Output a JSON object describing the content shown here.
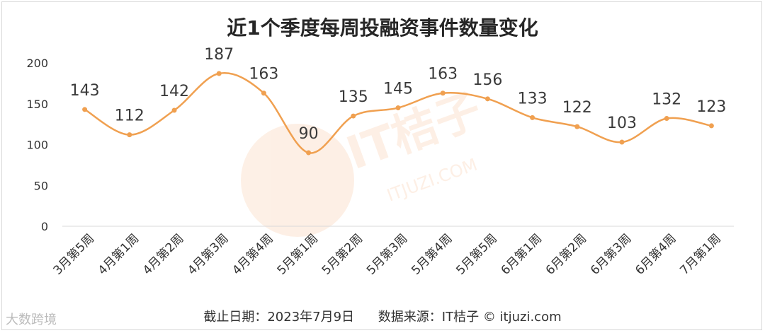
{
  "chart_data": {
    "type": "line",
    "title": "近1个季度每周投融资事件数量变化",
    "categories": [
      "3月第5周",
      "4月第1周",
      "4月第2周",
      "4月第3周",
      "4月第4周",
      "5月第1周",
      "5月第2周",
      "5月第3周",
      "5月第4周",
      "5月第5周",
      "6月第1周",
      "6月第2周",
      "6月第3周",
      "6月第4周",
      "7月第1周"
    ],
    "values": [
      143,
      112,
      142,
      187,
      163,
      90,
      135,
      145,
      163,
      156,
      133,
      122,
      103,
      132,
      123
    ],
    "ylim": [
      0,
      200
    ],
    "yticks": [
      "0",
      "50",
      "100",
      "150",
      "200"
    ],
    "grid": false,
    "legend": "none",
    "colors": {
      "line": "#f0a050",
      "point": "#f0a050",
      "label": "#3a3a3a",
      "axis": "#d9d9d9"
    }
  },
  "footer": {
    "date": "截止日期：2023年7月9日",
    "source": "数据来源：IT桔子 © itjuzi.com"
  },
  "watermark": {
    "text": "IT桔子",
    "sub": "ITJUZI.COM",
    "brand": "大数跨境"
  }
}
